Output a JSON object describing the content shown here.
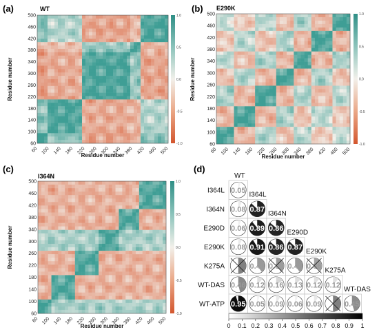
{
  "panels": [
    {
      "id": "a",
      "label": "(a)",
      "title": "WT"
    },
    {
      "id": "b",
      "label": "(b)",
      "title": "E290K"
    },
    {
      "id": "c",
      "label": "(c)",
      "title": "I364N"
    }
  ],
  "heatmap_axes": {
    "xlabel": "Residue number",
    "ylabel": "Residue number",
    "xticks_ac": [
      "60",
      "100",
      "140",
      "180",
      "220",
      "260",
      "300",
      "340",
      "380",
      "420",
      "460",
      "500"
    ],
    "xticks_b": [
      "60",
      "100",
      "140",
      "180",
      "220",
      "260",
      "300",
      "340",
      "380",
      "420",
      "460",
      "500"
    ],
    "yticks": [
      "500",
      "460",
      "420",
      "380",
      "340",
      "300",
      "260",
      "220",
      "180",
      "140",
      "100",
      "60"
    ],
    "colorbar_ticks": [
      "1.0",
      "0.5",
      "0.0",
      "-0.5",
      "-1.0"
    ]
  },
  "panel_d": {
    "label": "(d)",
    "top_label": "WT",
    "row_labels": [
      "I364L",
      "I364N",
      "E290D",
      "E290K",
      "K275A",
      "WT-DAS",
      "WT-ATP"
    ],
    "diag_labels": [
      "I364L",
      "I364N",
      "E290D",
      "E290K",
      "K275A",
      "WT-DAS"
    ],
    "colorbar_ticks": [
      "0",
      "0.1",
      "0.2",
      "0.3",
      "0.4",
      "0.5",
      "0.6",
      "0.7",
      "0.8",
      "0.9",
      "1"
    ]
  },
  "chart_data": [
    {
      "type": "heatmap",
      "title": "WT",
      "xlabel": "Residue number",
      "ylabel": "Residue number",
      "xlim": [
        60,
        500
      ],
      "ylim": [
        60,
        500
      ],
      "colorbar_range": [
        -1.0,
        1.0
      ],
      "colors": {
        "positive": "#3f9e95",
        "zero": "#f2f0ea",
        "negative": "#dd7452"
      }
    },
    {
      "type": "heatmap",
      "title": "E290K",
      "xlabel": "Residue number",
      "ylabel": "Residue number",
      "xlim": [
        60,
        500
      ],
      "ylim": [
        60,
        500
      ],
      "colorbar_range": [
        -1.0,
        1.0
      ]
    },
    {
      "type": "heatmap",
      "title": "I364N",
      "xlabel": "Residue number",
      "ylabel": "Residue number",
      "xlim": [
        60,
        500
      ],
      "ylim": [
        60,
        500
      ],
      "colorbar_range": [
        -1.0,
        1.0
      ]
    },
    {
      "type": "table",
      "description_rows": [
        "I364L",
        "I364N",
        "E290D",
        "E290K",
        "K275A",
        "WT-DAS",
        "WT-ATP"
      ],
      "columns": [
        "WT",
        "I364L",
        "I364N",
        "E290D",
        "E290K",
        "K275A",
        "WT-DAS"
      ],
      "values": [
        [
          0.05
        ],
        [
          0.08,
          0.87
        ],
        [
          0.06,
          0.89,
          0.86
        ],
        [
          0.08,
          0.91,
          0.86,
          0.87
        ],
        [
          0.5,
          0.4,
          0.39,
          0.4,
          0.36
        ],
        [
          0.46,
          0.12,
          0.16,
          0.13,
          0.12,
          0.12
        ],
        [
          0.95,
          0.05,
          0.09,
          0.06,
          0.09,
          0.5,
          0.45
        ]
      ],
      "labels": [
        [
          "0.05"
        ],
        [
          "0.08",
          "0.87"
        ],
        [
          "0.06",
          "0.89",
          "0.86"
        ],
        [
          "0.08",
          "0.91",
          "0.86",
          "0.87"
        ],
        [
          "",
          "0.40",
          "0.39",
          "0.40",
          "0.36"
        ],
        [
          "0.46",
          "0.12",
          "0.16",
          "0.13",
          "0.12",
          "0.12"
        ],
        [
          "0.95",
          "0.05",
          "0.09",
          "0.06",
          "0.09",
          "",
          "0.45"
        ]
      ],
      "crossed": [
        [
          false
        ],
        [
          false,
          false
        ],
        [
          false,
          false,
          false
        ],
        [
          false,
          false,
          false,
          false
        ],
        [
          true,
          false,
          true,
          false,
          true
        ],
        [
          false,
          false,
          false,
          false,
          false,
          false
        ],
        [
          false,
          false,
          false,
          false,
          false,
          true,
          false
        ]
      ],
      "colorbar_range": [
        0,
        1
      ]
    }
  ]
}
